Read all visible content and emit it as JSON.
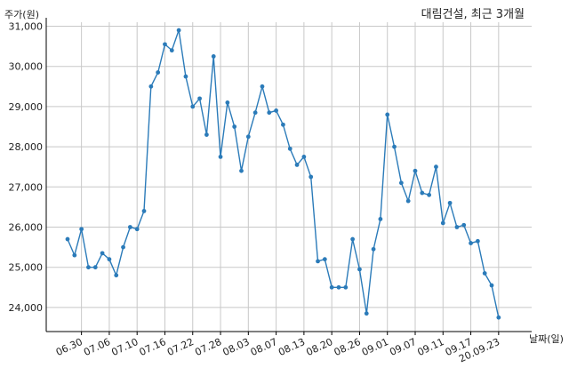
{
  "chart_data": {
    "type": "line",
    "title": "대림건설, 최근 3개월",
    "ylabel": "주가(원)",
    "xlabel": "날짜(일)",
    "ylim": [
      23400,
      31100
    ],
    "yticks": [
      24000,
      25000,
      26000,
      27000,
      28000,
      29000,
      30000,
      31000
    ],
    "ytick_labels": [
      "24,000",
      "25,000",
      "26,000",
      "27,000",
      "28,000",
      "29,000",
      "30,000",
      "31,000"
    ],
    "xtick_labels": [
      "06.30",
      "07.06",
      "07.10",
      "07.16",
      "07.22",
      "07.28",
      "08.03",
      "08.07",
      "08.13",
      "08.20",
      "08.26",
      "09.01",
      "09.07",
      "09.11",
      "09.17",
      "20.09.23"
    ],
    "xtick_index": [
      2,
      6,
      10,
      14,
      18,
      22,
      26,
      30,
      34,
      38,
      42,
      46,
      50,
      54,
      58,
      62
    ],
    "grid": true,
    "color": "#2b7bb9",
    "series": [
      {
        "values": [
          25700,
          25300,
          25950,
          25000,
          25000,
          25350,
          25200,
          24800,
          25500,
          26000,
          25950,
          26400,
          29500,
          29850,
          30550,
          30400,
          30900,
          29750,
          29000,
          29200,
          28300,
          30250,
          27750,
          29100,
          28500,
          27400,
          28250,
          28850,
          29500,
          28850,
          28900,
          28550,
          27950,
          27550,
          27750,
          27250,
          25150,
          25200,
          24500,
          24500,
          24500,
          25700,
          24950,
          23850,
          25450,
          26200,
          28800,
          28000,
          27100,
          26650,
          27400,
          26850,
          26800,
          27500,
          26100,
          26600,
          26000,
          26050,
          25600,
          25650,
          24850,
          24550,
          23750
        ]
      }
    ]
  }
}
